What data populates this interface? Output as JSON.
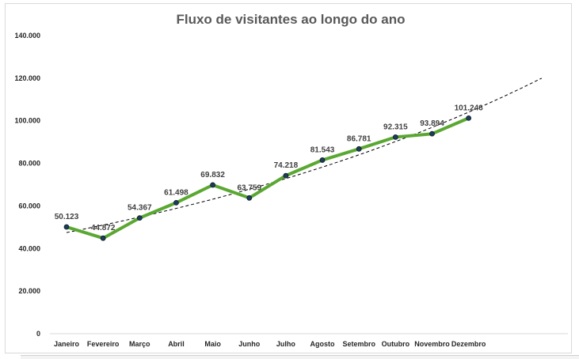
{
  "chart_data": {
    "type": "line",
    "title": "Fluxo de visitantes ao longo do ano",
    "xlabel": "",
    "ylabel": "",
    "categories": [
      "Janeiro",
      "Fevereiro",
      "Março",
      "Abril",
      "Maio",
      "Junho",
      "Julho",
      "Agosto",
      "Setembro",
      "Outubro",
      "Novembro",
      "Dezembro"
    ],
    "series": [
      {
        "values": [
          50123,
          44872,
          54367,
          61498,
          69832,
          63759,
          74218,
          81543,
          86781,
          92315,
          93894,
          101246
        ],
        "labels": [
          "50.123",
          "44.872",
          "54.367",
          "61.498",
          "69.832",
          "63.759",
          "74.218",
          "81.543",
          "86.781",
          "92.315",
          "93.894",
          "101.246"
        ],
        "color": "#5aa832",
        "marker_color": "#1f3b57"
      }
    ],
    "trendline": {
      "type": "exponential",
      "start": 47500,
      "end": 120000,
      "forward_periods": 2,
      "color": "#000000",
      "style": "dashed"
    },
    "ylim": [
      0,
      140000
    ],
    "yticks": [
      0,
      20000,
      40000,
      60000,
      80000,
      100000,
      120000,
      140000
    ],
    "ytick_labels": [
      "0",
      "20.000",
      "40.000",
      "60.000",
      "80.000",
      "100.000",
      "120.000",
      "140.000"
    ],
    "grid": false,
    "legend": "none"
  }
}
